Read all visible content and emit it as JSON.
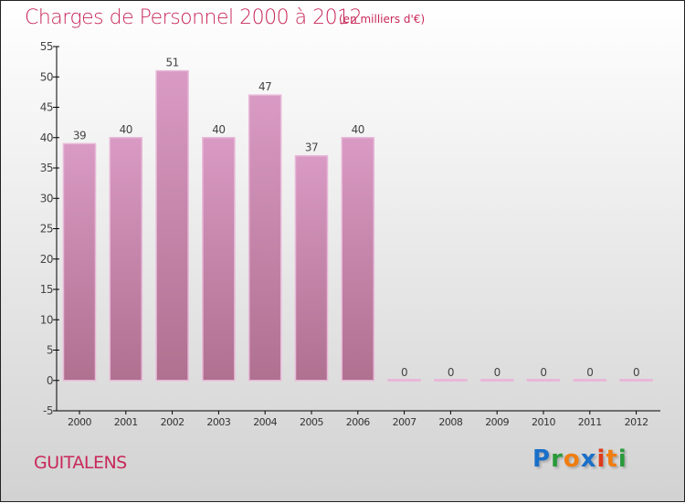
{
  "chart_data": {
    "type": "bar",
    "title": "Charges de Personnel 2000 à 2012",
    "subtitle": "(en milliers d'€)",
    "categories": [
      "2000",
      "2001",
      "2002",
      "2003",
      "2004",
      "2005",
      "2006",
      "2007",
      "2008",
      "2009",
      "2010",
      "2011",
      "2012"
    ],
    "values": [
      39,
      40,
      51,
      40,
      47,
      37,
      40,
      0,
      0,
      0,
      0,
      0,
      0
    ],
    "ylim": [
      -5,
      55
    ],
    "yticks": [
      -5,
      0,
      5,
      10,
      15,
      20,
      25,
      30,
      35,
      40,
      45,
      50,
      55
    ],
    "xlabel": "",
    "ylabel": "",
    "bar_color": "#d99ac4",
    "bar_color_dark": "#b07090"
  },
  "commune": "GUITALENS",
  "logo": {
    "letters": [
      "P",
      "r",
      "o",
      "x",
      "i",
      "t",
      "i"
    ],
    "colors": [
      "#1a6fc8",
      "#2a9a3a",
      "#f07d10",
      "#1a6fc8",
      "#e03a1a",
      "#f07d10",
      "#2a9a3a"
    ]
  }
}
